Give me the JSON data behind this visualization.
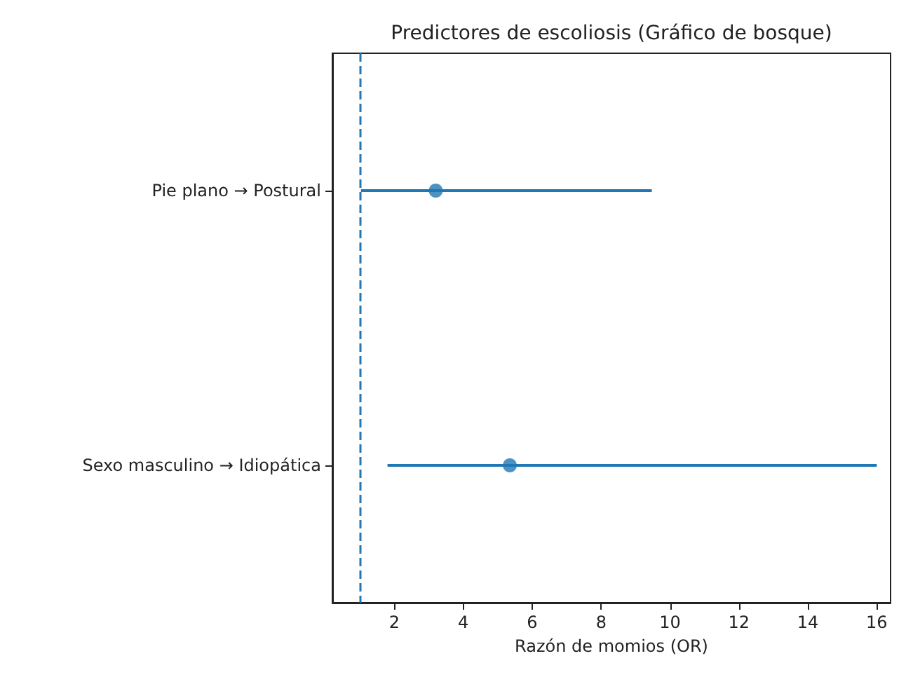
{
  "chart_data": {
    "type": "scatter",
    "title": "Predictores de escoliosis (Gráfico de bosque)",
    "xlabel": "Razón de momios (OR)",
    "orientation": "horizontal",
    "categories": [
      "Pie plano → Postural",
      "Sexo masculino → Idiopática"
    ],
    "values": [
      3.2,
      5.35
    ],
    "errors": [
      [
        1.03,
        9.47
      ],
      [
        1.8,
        16.0
      ]
    ],
    "color": "#1f77b4",
    "marker": "circle",
    "xlim": [
      0.2,
      16.4
    ],
    "xticks": [
      2,
      4,
      6,
      8,
      10,
      12,
      14,
      16
    ],
    "ref_lines": [
      {
        "axis": "x",
        "value": 1,
        "line_style": "dashed",
        "color": "#1f77b4"
      }
    ],
    "grid": false
  }
}
